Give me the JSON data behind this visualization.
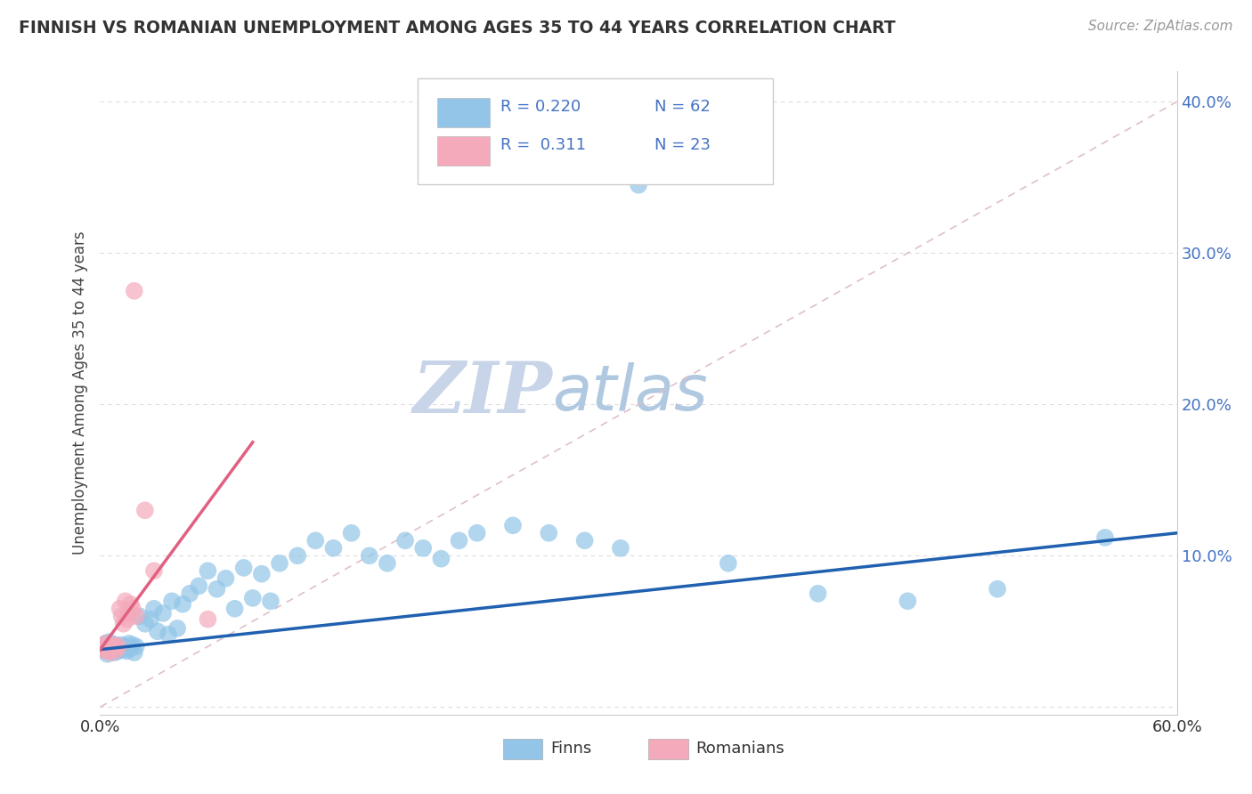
{
  "title": "FINNISH VS ROMANIAN UNEMPLOYMENT AMONG AGES 35 TO 44 YEARS CORRELATION CHART",
  "source": "Source: ZipAtlas.com",
  "ylabel": "Unemployment Among Ages 35 to 44 years",
  "xlim": [
    0.0,
    0.6
  ],
  "ylim": [
    -0.005,
    0.42
  ],
  "finn_color": "#92C5E8",
  "romanian_color": "#F4AABB",
  "finn_line_color": "#2060B0",
  "romanian_line_color": "#E06080",
  "reference_line_color": "#E0C0C8",
  "legend_text_color": "#4472C4",
  "r_finn": 0.22,
  "n_finn": 62,
  "r_romanian": 0.311,
  "n_romanian": 23,
  "watermark_zip": "ZIP",
  "watermark_atlas": "atlas",
  "watermark_color_zip": "#C8D4E8",
  "watermark_color_atlas": "#B0C8E0",
  "finn_x": [
    0.001,
    0.002,
    0.003,
    0.004,
    0.005,
    0.006,
    0.007,
    0.008,
    0.009,
    0.01,
    0.011,
    0.012,
    0.013,
    0.014,
    0.015,
    0.016,
    0.017,
    0.018,
    0.019,
    0.02,
    0.022,
    0.025,
    0.028,
    0.03,
    0.032,
    0.035,
    0.038,
    0.04,
    0.043,
    0.046,
    0.05,
    0.055,
    0.06,
    0.065,
    0.07,
    0.075,
    0.08,
    0.085,
    0.09,
    0.095,
    0.1,
    0.11,
    0.12,
    0.13,
    0.14,
    0.15,
    0.16,
    0.17,
    0.18,
    0.19,
    0.2,
    0.21,
    0.23,
    0.25,
    0.27,
    0.29,
    0.3,
    0.35,
    0.4,
    0.45,
    0.5,
    0.56
  ],
  "finn_y": [
    0.04,
    0.038,
    0.042,
    0.035,
    0.043,
    0.038,
    0.04,
    0.036,
    0.041,
    0.037,
    0.039,
    0.041,
    0.038,
    0.04,
    0.037,
    0.042,
    0.039,
    0.041,
    0.036,
    0.04,
    0.06,
    0.055,
    0.058,
    0.065,
    0.05,
    0.062,
    0.048,
    0.07,
    0.052,
    0.068,
    0.075,
    0.08,
    0.09,
    0.078,
    0.085,
    0.065,
    0.092,
    0.072,
    0.088,
    0.07,
    0.095,
    0.1,
    0.11,
    0.105,
    0.115,
    0.1,
    0.095,
    0.11,
    0.105,
    0.098,
    0.11,
    0.115,
    0.12,
    0.115,
    0.11,
    0.105,
    0.345,
    0.095,
    0.075,
    0.07,
    0.078,
    0.112
  ],
  "romanian_x": [
    0.001,
    0.002,
    0.003,
    0.004,
    0.005,
    0.006,
    0.007,
    0.008,
    0.009,
    0.01,
    0.011,
    0.012,
    0.013,
    0.014,
    0.015,
    0.016,
    0.017,
    0.018,
    0.019,
    0.02,
    0.025,
    0.03,
    0.06
  ],
  "romanian_y": [
    0.04,
    0.038,
    0.042,
    0.037,
    0.04,
    0.036,
    0.039,
    0.041,
    0.038,
    0.04,
    0.065,
    0.06,
    0.055,
    0.07,
    0.058,
    0.062,
    0.068,
    0.065,
    0.275,
    0.06,
    0.13,
    0.09,
    0.058
  ]
}
